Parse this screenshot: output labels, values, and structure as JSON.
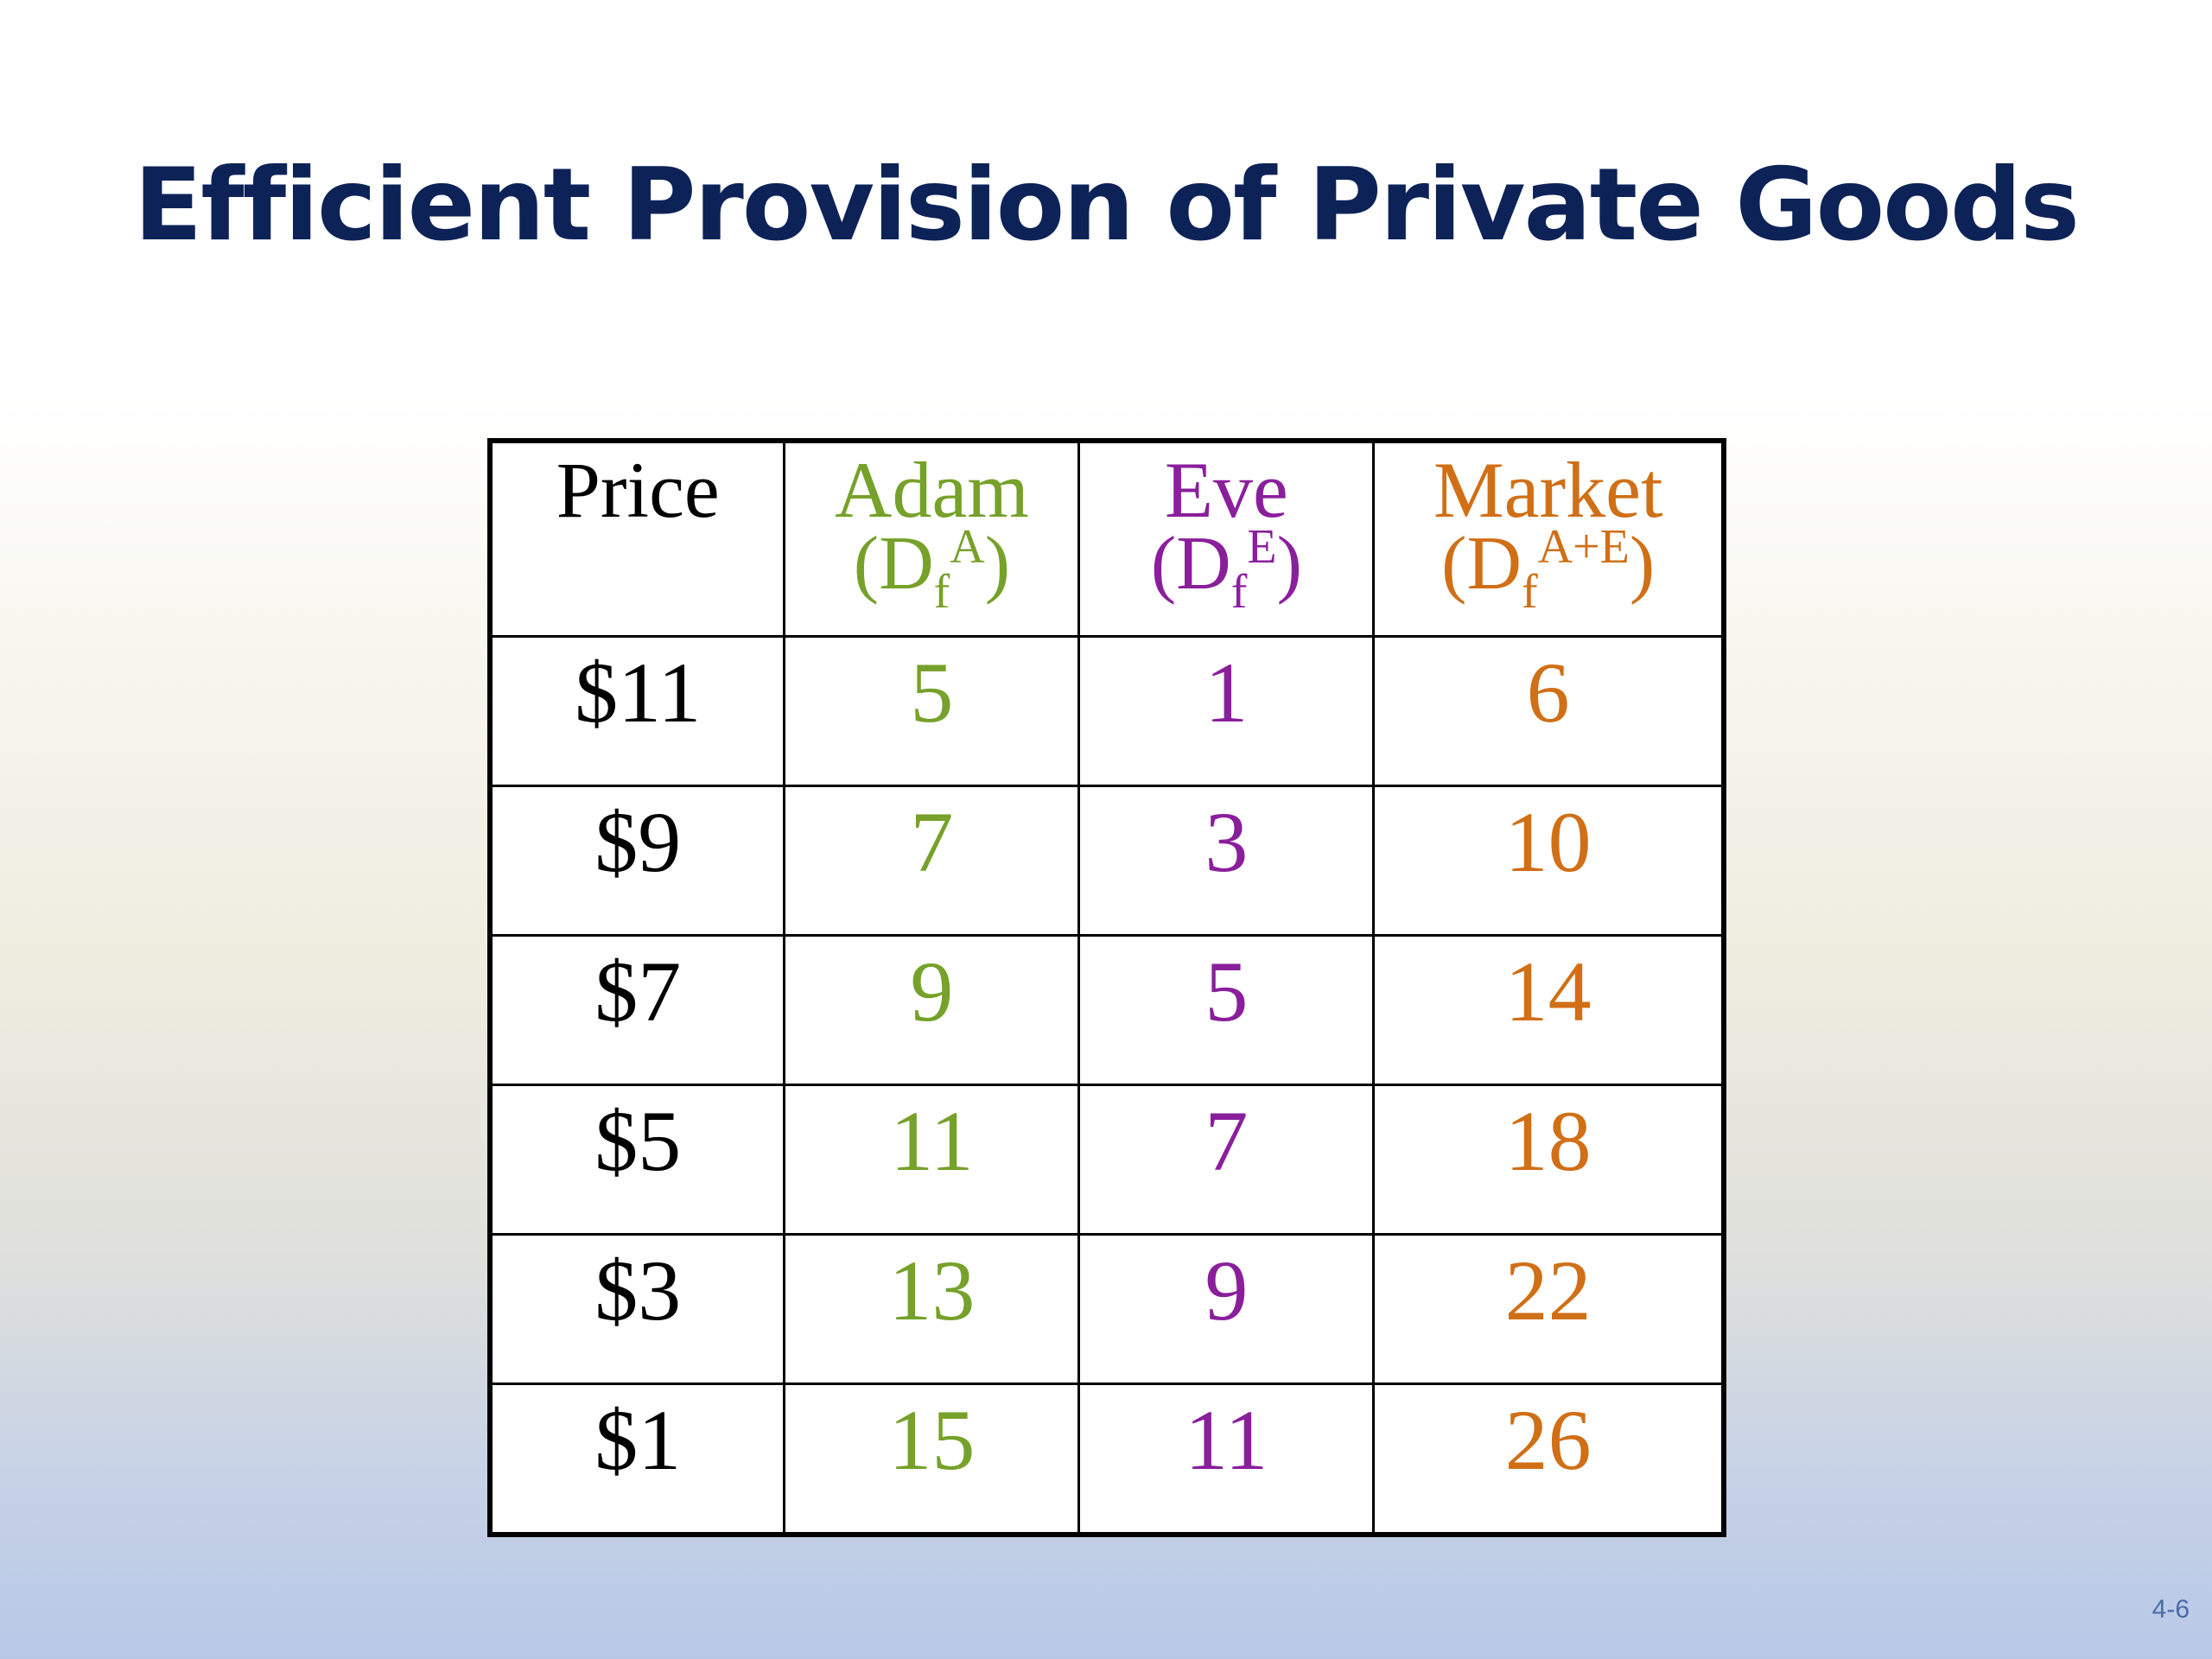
{
  "slide": {
    "title": "Efficient Provision of Private Goods",
    "number": "4-6"
  },
  "table": {
    "headers": {
      "price": {
        "label": "Price"
      },
      "adam": {
        "label": "Adam",
        "prefix": "(D",
        "sub": "f",
        "sup": "A",
        "suffix": ")"
      },
      "eve": {
        "label": "Eve",
        "prefix": "(D",
        "sub": "f",
        "sup": "E",
        "suffix": ")"
      },
      "market": {
        "label": "Market",
        "prefix": "(D",
        "sub": "f",
        "sup": "A+E",
        "suffix": ")"
      }
    },
    "rows": [
      {
        "price": "$11",
        "adam": "5",
        "eve": "1",
        "market": "6"
      },
      {
        "price": "$9",
        "adam": "7",
        "eve": "3",
        "market": "10"
      },
      {
        "price": "$7",
        "adam": "9",
        "eve": "5",
        "market": "14"
      },
      {
        "price": "$5",
        "adam": "11",
        "eve": "7",
        "market": "18"
      },
      {
        "price": "$3",
        "adam": "13",
        "eve": "9",
        "market": "22"
      },
      {
        "price": "$1",
        "adam": "15",
        "eve": "11",
        "market": "26"
      }
    ]
  },
  "colors": {
    "title": "#0d2257",
    "adam": "#76a12a",
    "eve": "#8a1f9c",
    "market": "#d06f16"
  }
}
